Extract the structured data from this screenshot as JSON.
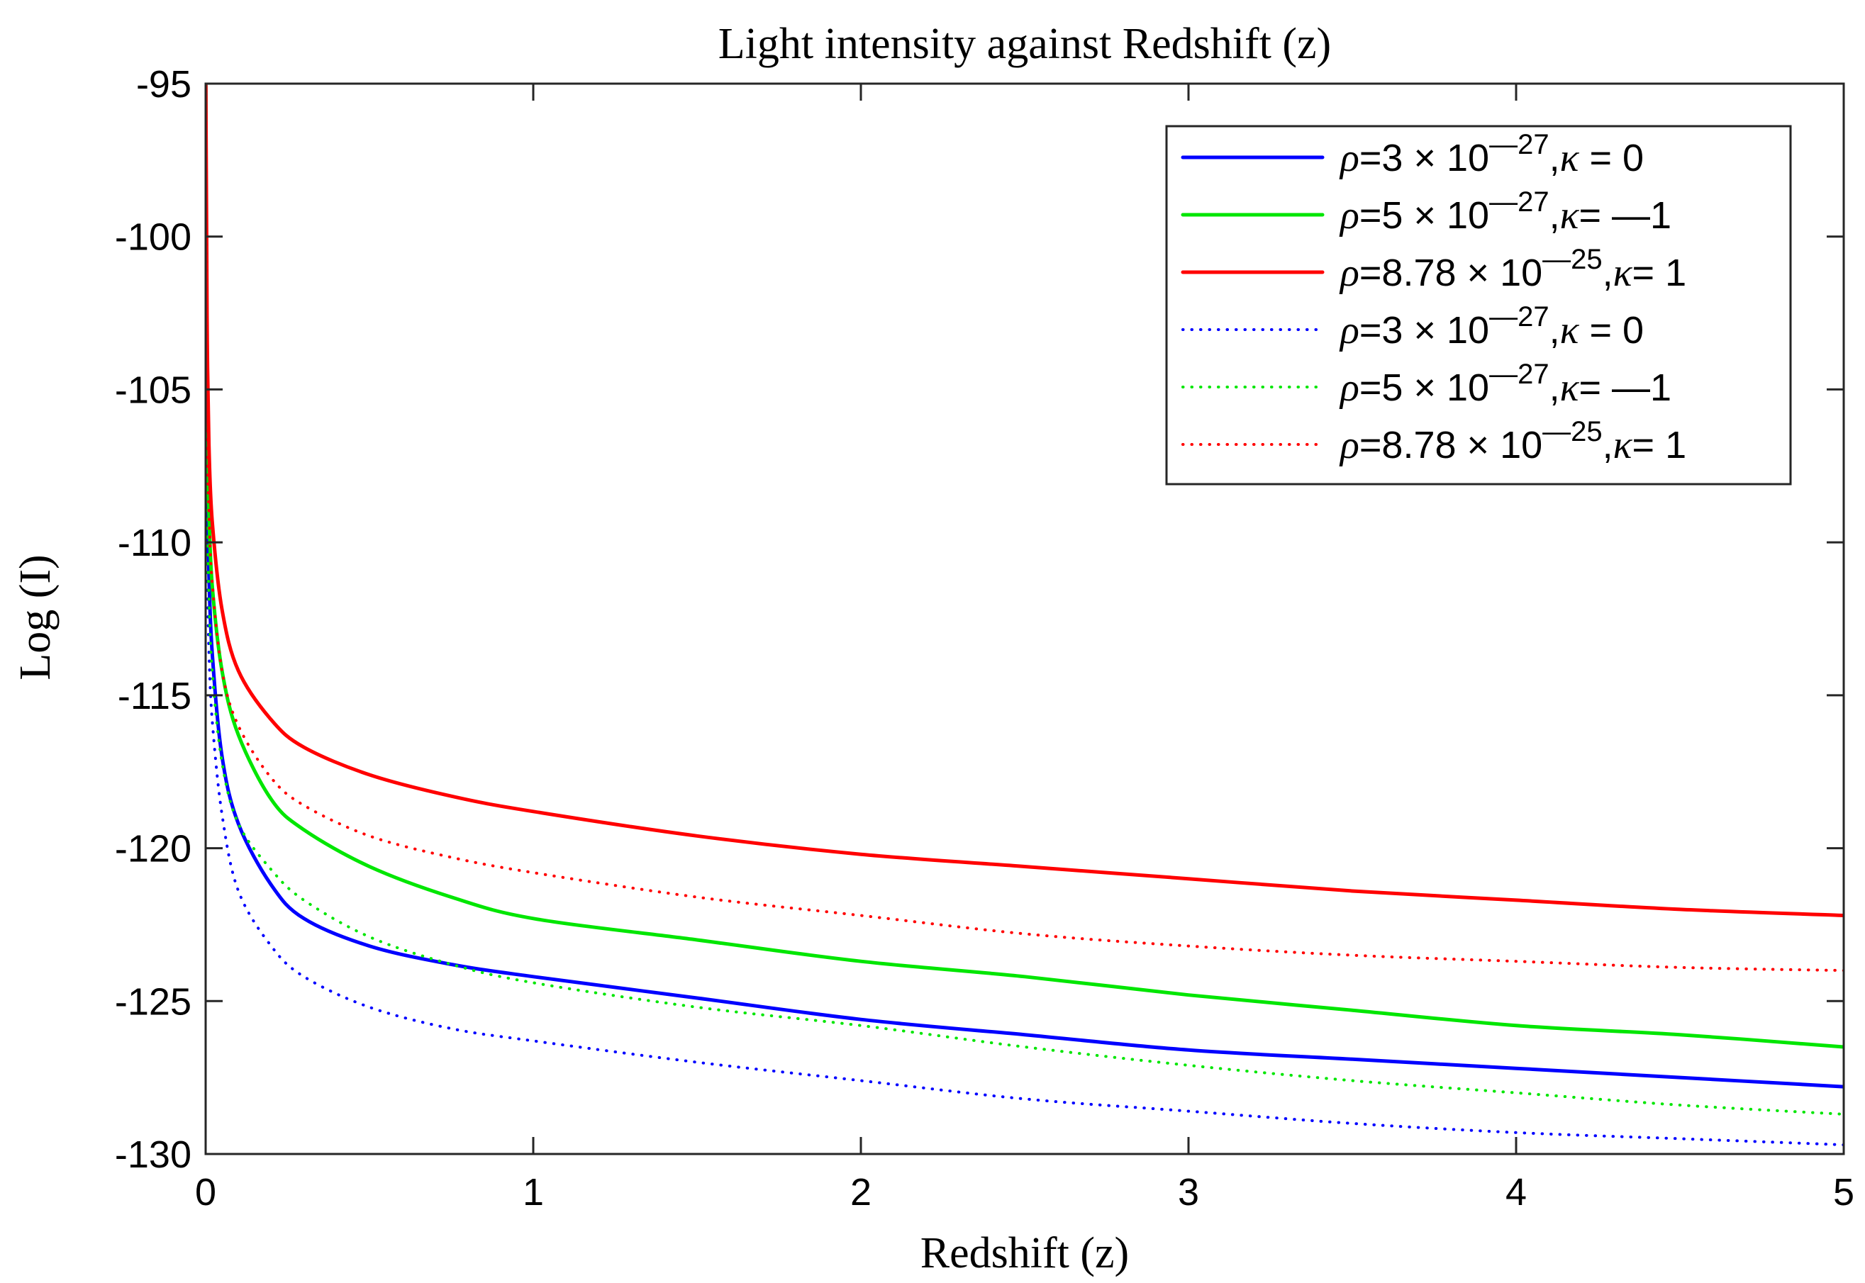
{
  "chart_data": {
    "type": "line",
    "title": "Light intensity against Redshift (z)",
    "xlabel": "Redshift (z)",
    "ylabel": "Log (I)",
    "xlim": [
      0,
      5
    ],
    "ylim": [
      -130,
      -95
    ],
    "xticks": [
      0,
      1,
      2,
      3,
      4,
      5
    ],
    "yticks": [
      -95,
      -100,
      -105,
      -110,
      -115,
      -120,
      -125,
      -130
    ],
    "xtick_labels": [
      "0",
      "1",
      "2",
      "3",
      "4",
      "5"
    ],
    "ytick_labels": [
      "-95",
      "-100",
      "-105",
      "-110",
      "-115",
      "-120",
      "-125",
      "-130"
    ],
    "grid": false,
    "legend_position": "top-right",
    "x": [
      0.003,
      0.005,
      0.01,
      0.02,
      0.05,
      0.1,
      0.2,
      0.3,
      0.5,
      0.75,
      1,
      1.5,
      2,
      2.5,
      3,
      3.5,
      4,
      4.5,
      5
    ],
    "series": [
      {
        "name": "rho=3e-27, kappa=0 (solid)",
        "legend": {
          "lead": "=3 × 10",
          "exp": "—27",
          "tail": ", = 0"
        },
        "color": "#0000ff",
        "style": "solid",
        "values": [
          -106.0,
          -108.0,
          -111.0,
          -113.6,
          -117.0,
          -119.2,
          -121.2,
          -122.3,
          -123.2,
          -123.8,
          -124.2,
          -124.9,
          -125.6,
          -126.1,
          -126.6,
          -126.9,
          -127.2,
          -127.5,
          -127.8
        ]
      },
      {
        "name": "rho=5e-27, kappa=-1 (solid)",
        "legend": {
          "lead": "=5 × 10",
          "exp": "—27",
          "tail": ",= —1"
        },
        "color": "#00e600",
        "style": "solid",
        "values": [
          -105.0,
          -106.5,
          -109.0,
          -111.4,
          -114.2,
          -116.3,
          -118.4,
          -119.4,
          -120.6,
          -121.6,
          -122.3,
          -123.0,
          -123.7,
          -124.2,
          -124.8,
          -125.3,
          -125.8,
          -126.1,
          -126.5
        ]
      },
      {
        "name": "rho=8.78e-25, kappa=1 (solid)",
        "legend": {
          "lead": "=8.78 × 10",
          "exp": "—25",
          "tail": ",= 1"
        },
        "color": "#ff0000",
        "style": "solid",
        "values": [
          -100.0,
          -103.5,
          -106.8,
          -109.3,
          -112.2,
          -114.2,
          -115.8,
          -116.7,
          -117.6,
          -118.3,
          -118.8,
          -119.6,
          -120.2,
          -120.6,
          -121.0,
          -121.4,
          -121.7,
          -122.0,
          -122.2
        ]
      },
      {
        "name": "rho=3e-27, kappa=0 (dotted)",
        "legend": {
          "lead": "=3 × 10",
          "exp": "—27",
          "tail": ", = 0"
        },
        "color": "#0000ff",
        "style": "dotted",
        "values": [
          -109.0,
          -111.0,
          -113.5,
          -115.8,
          -118.9,
          -121.4,
          -123.2,
          -124.2,
          -125.2,
          -125.9,
          -126.3,
          -127.0,
          -127.6,
          -128.2,
          -128.6,
          -129.0,
          -129.3,
          -129.5,
          -129.7
        ]
      },
      {
        "name": "rho=5e-27, kappa=-1 (dotted)",
        "legend": {
          "lead": "=5 × 10",
          "exp": "—27",
          "tail": ",= —1"
        },
        "color": "#00e600",
        "style": "dotted",
        "values": [
          -107.5,
          -109.5,
          -111.8,
          -114.2,
          -117.2,
          -119.2,
          -120.7,
          -121.7,
          -122.9,
          -123.8,
          -124.4,
          -125.2,
          -125.8,
          -126.5,
          -127.1,
          -127.6,
          -128.0,
          -128.4,
          -128.7
        ]
      },
      {
        "name": "rho=8.78e-25, kappa=1 (dotted)",
        "legend": {
          "lead": "=8.78 × 10",
          "exp": "—25",
          "tail": ",= 1"
        },
        "color": "#ff0000",
        "style": "dotted",
        "values": [
          -104.0,
          -106.5,
          -109.0,
          -111.3,
          -114.2,
          -116.0,
          -117.7,
          -118.6,
          -119.6,
          -120.3,
          -120.8,
          -121.6,
          -122.2,
          -122.8,
          -123.2,
          -123.5,
          -123.7,
          -123.9,
          -124.0
        ]
      }
    ]
  }
}
